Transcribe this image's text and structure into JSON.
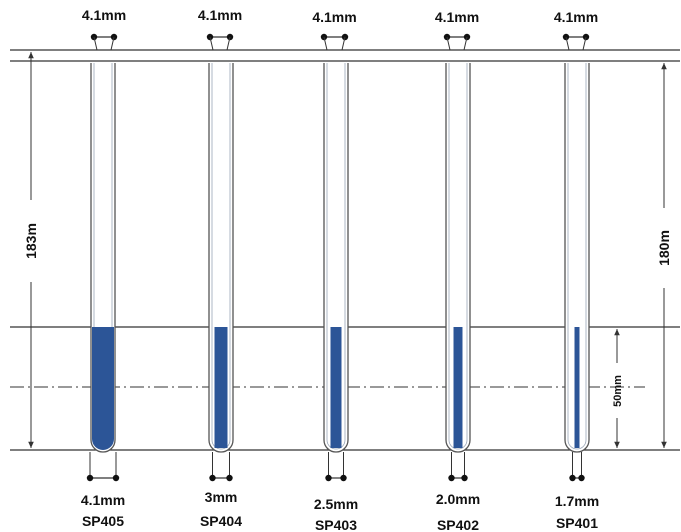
{
  "tubes": [
    {
      "model": "SP405",
      "outer_diameter": "4.1mm",
      "inner_diameter": "4.1mm"
    },
    {
      "model": "SP404",
      "outer_diameter": "4.1mm",
      "inner_diameter": "3mm"
    },
    {
      "model": "SP403",
      "outer_diameter": "4.1mm",
      "inner_diameter": "2.5mm"
    },
    {
      "model": "SP402",
      "outer_diameter": "4.1mm",
      "inner_diameter": "2.0mm"
    },
    {
      "model": "SP401",
      "outer_diameter": "4.1mm",
      "inner_diameter": "1.7mm"
    }
  ],
  "dimensions": {
    "left_height": "183m",
    "right_height": "180m",
    "fill_height": "50mm"
  },
  "colors": {
    "fill": "#2c5597",
    "line": "#333333",
    "tube_outline": "#555555"
  }
}
